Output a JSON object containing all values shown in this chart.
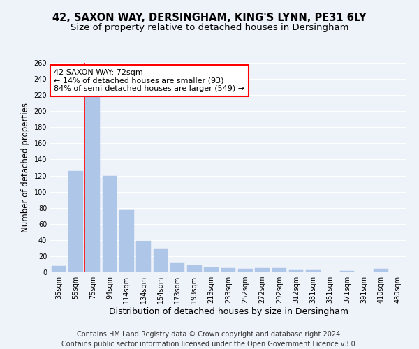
{
  "title_line1": "42, SAXON WAY, DERSINGHAM, KING'S LYNN, PE31 6LY",
  "title_line2": "Size of property relative to detached houses in Dersingham",
  "xlabel": "Distribution of detached houses by size in Dersingham",
  "ylabel": "Number of detached properties",
  "categories": [
    "35sqm",
    "55sqm",
    "75sqm",
    "94sqm",
    "114sqm",
    "134sqm",
    "154sqm",
    "173sqm",
    "193sqm",
    "213sqm",
    "233sqm",
    "252sqm",
    "272sqm",
    "292sqm",
    "312sqm",
    "331sqm",
    "351sqm",
    "371sqm",
    "391sqm",
    "410sqm",
    "430sqm"
  ],
  "values": [
    8,
    126,
    218,
    120,
    77,
    39,
    29,
    11,
    9,
    6,
    5,
    4,
    5,
    5,
    3,
    3,
    0,
    2,
    0,
    4,
    0
  ],
  "bar_color": "#aec6e8",
  "bar_edge_color": "#aec6e8",
  "vline_color": "red",
  "annotation_text": "42 SAXON WAY: 72sqm\n← 14% of detached houses are smaller (93)\n84% of semi-detached houses are larger (549) →",
  "annotation_box_color": "white",
  "annotation_box_edge": "red",
  "ylim": [
    0,
    260
  ],
  "yticks": [
    0,
    20,
    40,
    60,
    80,
    100,
    120,
    140,
    160,
    180,
    200,
    220,
    240,
    260
  ],
  "background_color": "#eef2f9",
  "grid_color": "white",
  "footer_line1": "Contains HM Land Registry data © Crown copyright and database right 2024.",
  "footer_line2": "Contains public sector information licensed under the Open Government Licence v3.0.",
  "title_fontsize": 10.5,
  "subtitle_fontsize": 9.5,
  "xlabel_fontsize": 9,
  "ylabel_fontsize": 8.5,
  "tick_fontsize": 7,
  "footer_fontsize": 7,
  "annot_fontsize": 8
}
